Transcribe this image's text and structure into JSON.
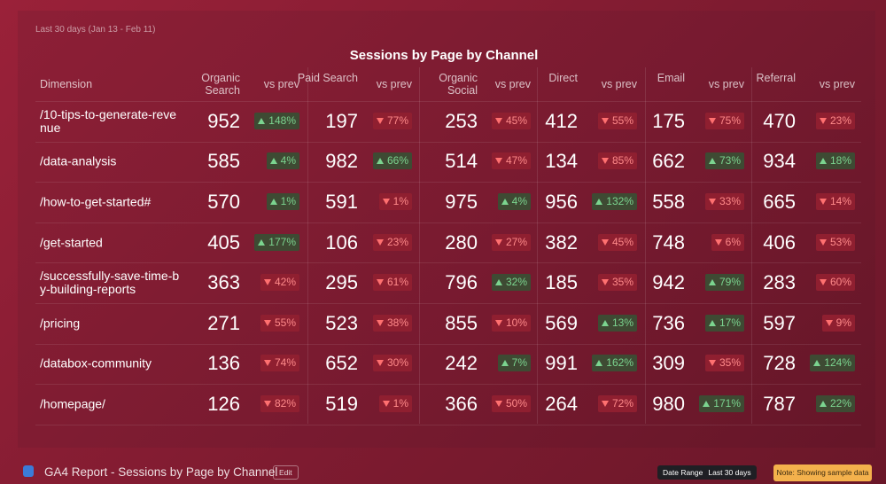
{
  "header": {
    "date_range": "Last 30 days (Jan 13 - Feb 11)"
  },
  "table": {
    "title": "Sessions by Page by Channel",
    "dimension_header": "Dimension",
    "columns": [
      {
        "name": "Organic Search",
        "compare": "vs prev"
      },
      {
        "name": "Paid Search",
        "compare": "vs prev"
      },
      {
        "name": "Organic Social",
        "compare": "vs prev"
      },
      {
        "name": "Direct",
        "compare": "vs prev"
      },
      {
        "name": "Email",
        "compare": "vs prev"
      },
      {
        "name": "Referral",
        "compare": "vs prev"
      }
    ],
    "rows": [
      {
        "page": "/10-tips-to-generate-revenue",
        "cells": [
          {
            "value": 952,
            "change": "148%",
            "trend": "up"
          },
          {
            "value": 197,
            "change": "77%",
            "trend": "down"
          },
          {
            "value": 253,
            "change": "45%",
            "trend": "down"
          },
          {
            "value": 412,
            "change": "55%",
            "trend": "down"
          },
          {
            "value": 175,
            "change": "75%",
            "trend": "down"
          },
          {
            "value": 470,
            "change": "23%",
            "trend": "down"
          }
        ]
      },
      {
        "page": "/data-analysis",
        "cells": [
          {
            "value": 585,
            "change": "4%",
            "trend": "up"
          },
          {
            "value": 982,
            "change": "66%",
            "trend": "up"
          },
          {
            "value": 514,
            "change": "47%",
            "trend": "down"
          },
          {
            "value": 134,
            "change": "85%",
            "trend": "down"
          },
          {
            "value": 662,
            "change": "73%",
            "trend": "up"
          },
          {
            "value": 934,
            "change": "18%",
            "trend": "up"
          }
        ]
      },
      {
        "page": "/how-to-get-started#",
        "cells": [
          {
            "value": 570,
            "change": "1%",
            "trend": "up"
          },
          {
            "value": 591,
            "change": "1%",
            "trend": "down"
          },
          {
            "value": 975,
            "change": "4%",
            "trend": "up"
          },
          {
            "value": 956,
            "change": "132%",
            "trend": "up"
          },
          {
            "value": 558,
            "change": "33%",
            "trend": "down"
          },
          {
            "value": 665,
            "change": "14%",
            "trend": "down"
          }
        ]
      },
      {
        "page": "/get-started",
        "cells": [
          {
            "value": 405,
            "change": "177%",
            "trend": "up"
          },
          {
            "value": 106,
            "change": "23%",
            "trend": "down"
          },
          {
            "value": 280,
            "change": "27%",
            "trend": "down"
          },
          {
            "value": 382,
            "change": "45%",
            "trend": "down"
          },
          {
            "value": 748,
            "change": "6%",
            "trend": "down"
          },
          {
            "value": 406,
            "change": "53%",
            "trend": "down"
          }
        ]
      },
      {
        "page": "/successfully-save-time-by-building-reports",
        "cells": [
          {
            "value": 363,
            "change": "42%",
            "trend": "down"
          },
          {
            "value": 295,
            "change": "61%",
            "trend": "down"
          },
          {
            "value": 796,
            "change": "32%",
            "trend": "up"
          },
          {
            "value": 185,
            "change": "35%",
            "trend": "down"
          },
          {
            "value": 942,
            "change": "79%",
            "trend": "up"
          },
          {
            "value": 283,
            "change": "60%",
            "trend": "down"
          }
        ]
      },
      {
        "page": "/pricing",
        "cells": [
          {
            "value": 271,
            "change": "55%",
            "trend": "down"
          },
          {
            "value": 523,
            "change": "38%",
            "trend": "down"
          },
          {
            "value": 855,
            "change": "10%",
            "trend": "down"
          },
          {
            "value": 569,
            "change": "13%",
            "trend": "up"
          },
          {
            "value": 736,
            "change": "17%",
            "trend": "up"
          },
          {
            "value": 597,
            "change": "9%",
            "trend": "down"
          }
        ]
      },
      {
        "page": "/databox-community",
        "cells": [
          {
            "value": 136,
            "change": "74%",
            "trend": "down"
          },
          {
            "value": 652,
            "change": "30%",
            "trend": "down"
          },
          {
            "value": 242,
            "change": "7%",
            "trend": "up"
          },
          {
            "value": 991,
            "change": "162%",
            "trend": "up"
          },
          {
            "value": 309,
            "change": "35%",
            "trend": "down"
          },
          {
            "value": 728,
            "change": "124%",
            "trend": "up"
          }
        ]
      },
      {
        "page": "/homepage/",
        "cells": [
          {
            "value": 126,
            "change": "82%",
            "trend": "down"
          },
          {
            "value": 519,
            "change": "1%",
            "trend": "down"
          },
          {
            "value": 366,
            "change": "50%",
            "trend": "down"
          },
          {
            "value": 264,
            "change": "72%",
            "trend": "down"
          },
          {
            "value": 980,
            "change": "171%",
            "trend": "up"
          },
          {
            "value": 787,
            "change": "22%",
            "trend": "up"
          }
        ]
      }
    ]
  },
  "footer": {
    "report_name": "GA4 Report - Sessions by Page by Channel",
    "edit": "Edit",
    "date_range_label": "Date Range",
    "date_range_value": "Last 30 days",
    "note": "Note: Showing sample data"
  }
}
